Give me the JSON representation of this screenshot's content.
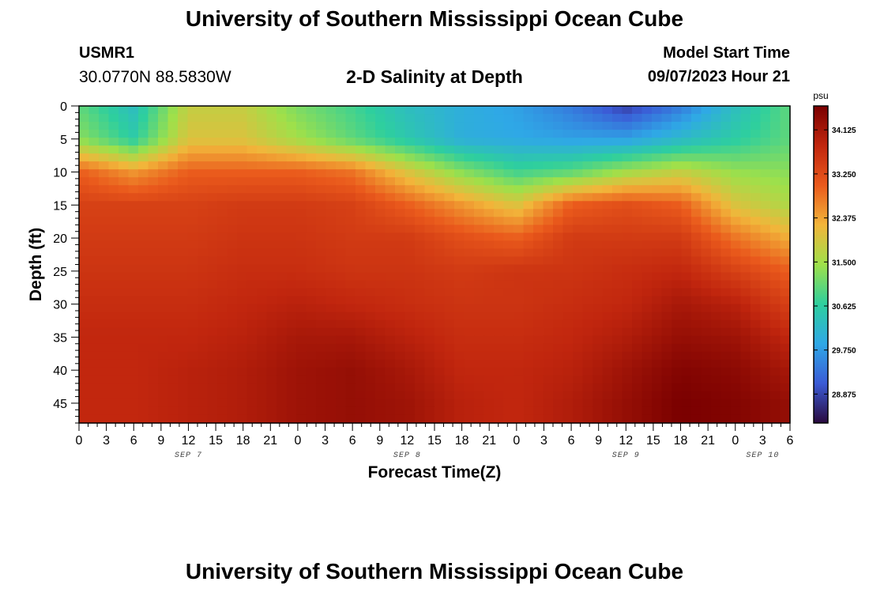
{
  "header": {
    "title": "University of Southern Mississippi Ocean Cube",
    "station_id": "USMR1",
    "station_coords": "30.0770N  88.5830W",
    "plot_title": "2-D Salinity at Depth",
    "start_label": "Model Start Time",
    "start_value": "09/07/2023 Hour 21"
  },
  "footer": {
    "title": "University of Southern Mississippi Ocean Cube"
  },
  "chart_data": {
    "type": "heatmap",
    "title": "2-D Salinity at Depth",
    "xlabel": "Forecast Time(Z)",
    "ylabel": "Depth (ft)",
    "x_range_hours": [
      0,
      78
    ],
    "x_tick_step_hours": 3,
    "x_tick_labels": [
      "0",
      "3",
      "6",
      "9",
      "12",
      "15",
      "18",
      "21",
      "0",
      "3",
      "6",
      "9",
      "12",
      "15",
      "18",
      "21",
      "0",
      "3",
      "6",
      "9",
      "12",
      "15",
      "18",
      "21",
      "0",
      "3",
      "6"
    ],
    "date_labels": [
      {
        "label": "SEP 7",
        "hour": 12
      },
      {
        "label": "SEP 8",
        "hour": 36
      },
      {
        "label": "SEP 9",
        "hour": 60
      },
      {
        "label": "SEP 10",
        "hour": 75
      }
    ],
    "ylim": [
      0,
      48
    ],
    "y_ticks": [
      0,
      5,
      10,
      15,
      20,
      25,
      30,
      35,
      40,
      45
    ],
    "colorbar": {
      "unit": "psu",
      "range": [
        28.3,
        34.6
      ],
      "tick_values": [
        34.125,
        33.25,
        32.375,
        31.5,
        30.625,
        29.75,
        28.875
      ],
      "tick_labels": [
        "34.125",
        "33.250",
        "32.375",
        "31.500",
        "30.625",
        "29.750",
        "28.875"
      ]
    },
    "depth_ft": [
      0,
      5,
      10,
      15,
      20,
      25,
      30,
      35,
      40,
      45,
      48
    ],
    "time_hours": [
      0,
      6,
      12,
      18,
      24,
      30,
      36,
      42,
      48,
      54,
      60,
      66,
      72,
      78
    ],
    "salinity_psu": [
      [
        31.0,
        30.3,
        31.8,
        31.8,
        31.2,
        30.8,
        30.3,
        30.0,
        29.8,
        29.4,
        28.8,
        29.4,
        30.3,
        31.0
      ],
      [
        31.3,
        30.6,
        32.0,
        32.0,
        31.5,
        31.0,
        30.5,
        30.0,
        29.9,
        29.8,
        29.8,
        30.2,
        30.6,
        31.0
      ],
      [
        33.0,
        32.5,
        33.0,
        33.0,
        33.0,
        32.8,
        32.0,
        31.3,
        30.8,
        31.0,
        31.5,
        31.8,
        31.4,
        31.3
      ],
      [
        33.4,
        33.4,
        33.4,
        33.5,
        33.5,
        33.4,
        33.0,
        32.5,
        32.0,
        33.0,
        33.2,
        33.0,
        32.0,
        31.6
      ],
      [
        33.5,
        33.5,
        33.5,
        33.6,
        33.6,
        33.5,
        33.5,
        33.2,
        33.0,
        33.5,
        33.5,
        33.5,
        32.8,
        32.3
      ],
      [
        33.6,
        33.6,
        33.6,
        33.7,
        33.7,
        33.6,
        33.6,
        33.5,
        33.6,
        33.6,
        33.7,
        33.8,
        33.4,
        33.0
      ],
      [
        33.7,
        33.7,
        33.7,
        33.8,
        33.9,
        33.8,
        33.7,
        33.6,
        33.6,
        33.7,
        33.8,
        34.1,
        33.9,
        33.4
      ],
      [
        33.8,
        33.8,
        33.8,
        33.9,
        34.1,
        34.1,
        33.9,
        33.7,
        33.7,
        33.8,
        34.0,
        34.3,
        34.2,
        33.8
      ],
      [
        33.8,
        33.8,
        33.9,
        34.0,
        34.2,
        34.3,
        34.1,
        33.8,
        33.8,
        33.9,
        34.2,
        34.5,
        34.4,
        34.1
      ],
      [
        33.8,
        33.8,
        33.9,
        34.0,
        34.2,
        34.3,
        34.2,
        33.9,
        33.8,
        34.0,
        34.3,
        34.6,
        34.5,
        34.3
      ],
      [
        33.8,
        33.8,
        33.9,
        34.0,
        34.2,
        34.3,
        34.2,
        33.9,
        33.8,
        34.0,
        34.3,
        34.6,
        34.5,
        34.3
      ]
    ]
  },
  "colors": {
    "axis": "#000000",
    "colormap": [
      "#2a0a3e",
      "#3b5bd6",
      "#2fa8e6",
      "#2ecf9e",
      "#9fe04a",
      "#f2b53a",
      "#ea5a1c",
      "#c1260e",
      "#7a0000"
    ]
  }
}
